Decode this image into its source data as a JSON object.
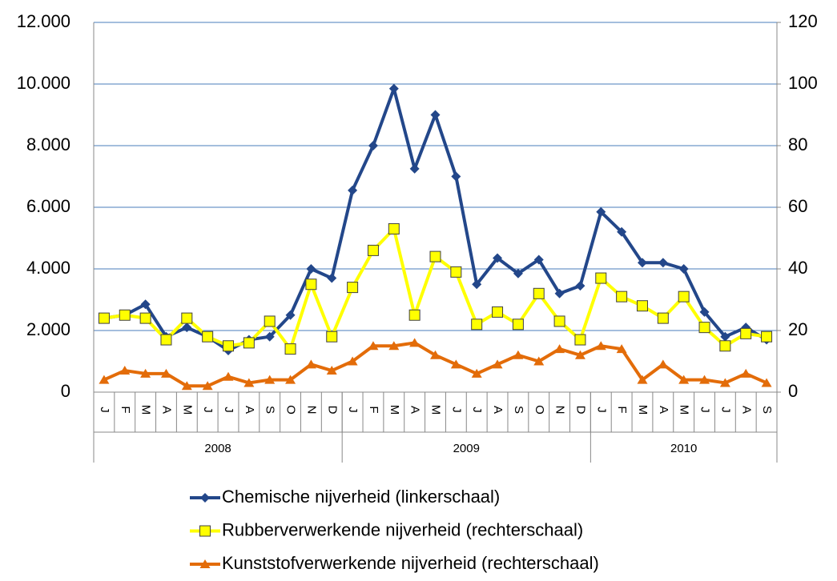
{
  "chart_data": {
    "type": "line",
    "categories": [
      "J",
      "F",
      "M",
      "A",
      "M",
      "J",
      "J",
      "A",
      "S",
      "O",
      "N",
      "D",
      "J",
      "F",
      "M",
      "A",
      "M",
      "J",
      "J",
      "A",
      "S",
      "O",
      "N",
      "D",
      "J",
      "F",
      "M",
      "A",
      "M",
      "J",
      "J",
      "A",
      "S"
    ],
    "year_groups": [
      "2008",
      "2009",
      "2010"
    ],
    "ylim": [
      0,
      12000
    ],
    "yticks": [
      0,
      {
        "value": 2000,
        "label": "2.000"
      },
      {
        "value": 4000,
        "label": "4.000"
      },
      {
        "value": 6000,
        "label": "6.000"
      },
      {
        "value": 8000,
        "label": "8.000"
      },
      {
        "value": 10000,
        "label": "10.000"
      },
      {
        "value": 12000,
        "label": "12.000"
      }
    ],
    "y2lim": [
      0,
      120
    ],
    "y2ticks": [
      0,
      20,
      40,
      60,
      80,
      100,
      120
    ],
    "grid": true,
    "legend": "bottom",
    "series": [
      {
        "name": "Chemische nijverheid (linkerschaal)",
        "color": "#23478a",
        "marker": "diamond",
        "values": [
          2400,
          2500,
          2850,
          1800,
          2100,
          1800,
          1350,
          1700,
          1800,
          2500,
          4000,
          3700,
          6550,
          8000,
          9850,
          7250,
          9000,
          7000,
          3500,
          4350,
          3850,
          4300,
          3200,
          3450,
          5850,
          5200,
          4200,
          4200,
          4000,
          2600,
          1800,
          2100,
          1700
        ]
      },
      {
        "name": "Rubberverwerkende nijverheid (rechterschaal)",
        "color": "#ffff00",
        "marker": "square",
        "axis": "y2",
        "values": [
          24,
          25,
          24,
          17,
          24,
          18,
          15,
          16,
          23,
          14,
          35,
          18,
          34,
          46,
          53,
          25,
          44,
          39,
          22,
          26,
          22,
          32,
          23,
          17,
          37,
          31,
          28,
          24,
          31,
          21,
          15,
          19,
          18
        ]
      },
      {
        "name": "Kunststofverwerkende nijverheid (rechterschaal)",
        "color": "#e36c09",
        "marker": "triangle",
        "axis": "y2",
        "values": [
          4,
          7,
          6,
          6,
          2,
          2,
          5,
          3,
          4,
          4,
          9,
          7,
          10,
          15,
          15,
          16,
          12,
          9,
          6,
          9,
          12,
          10,
          14,
          12,
          15,
          14,
          4,
          9,
          4,
          4,
          3,
          6,
          3
        ]
      }
    ]
  }
}
